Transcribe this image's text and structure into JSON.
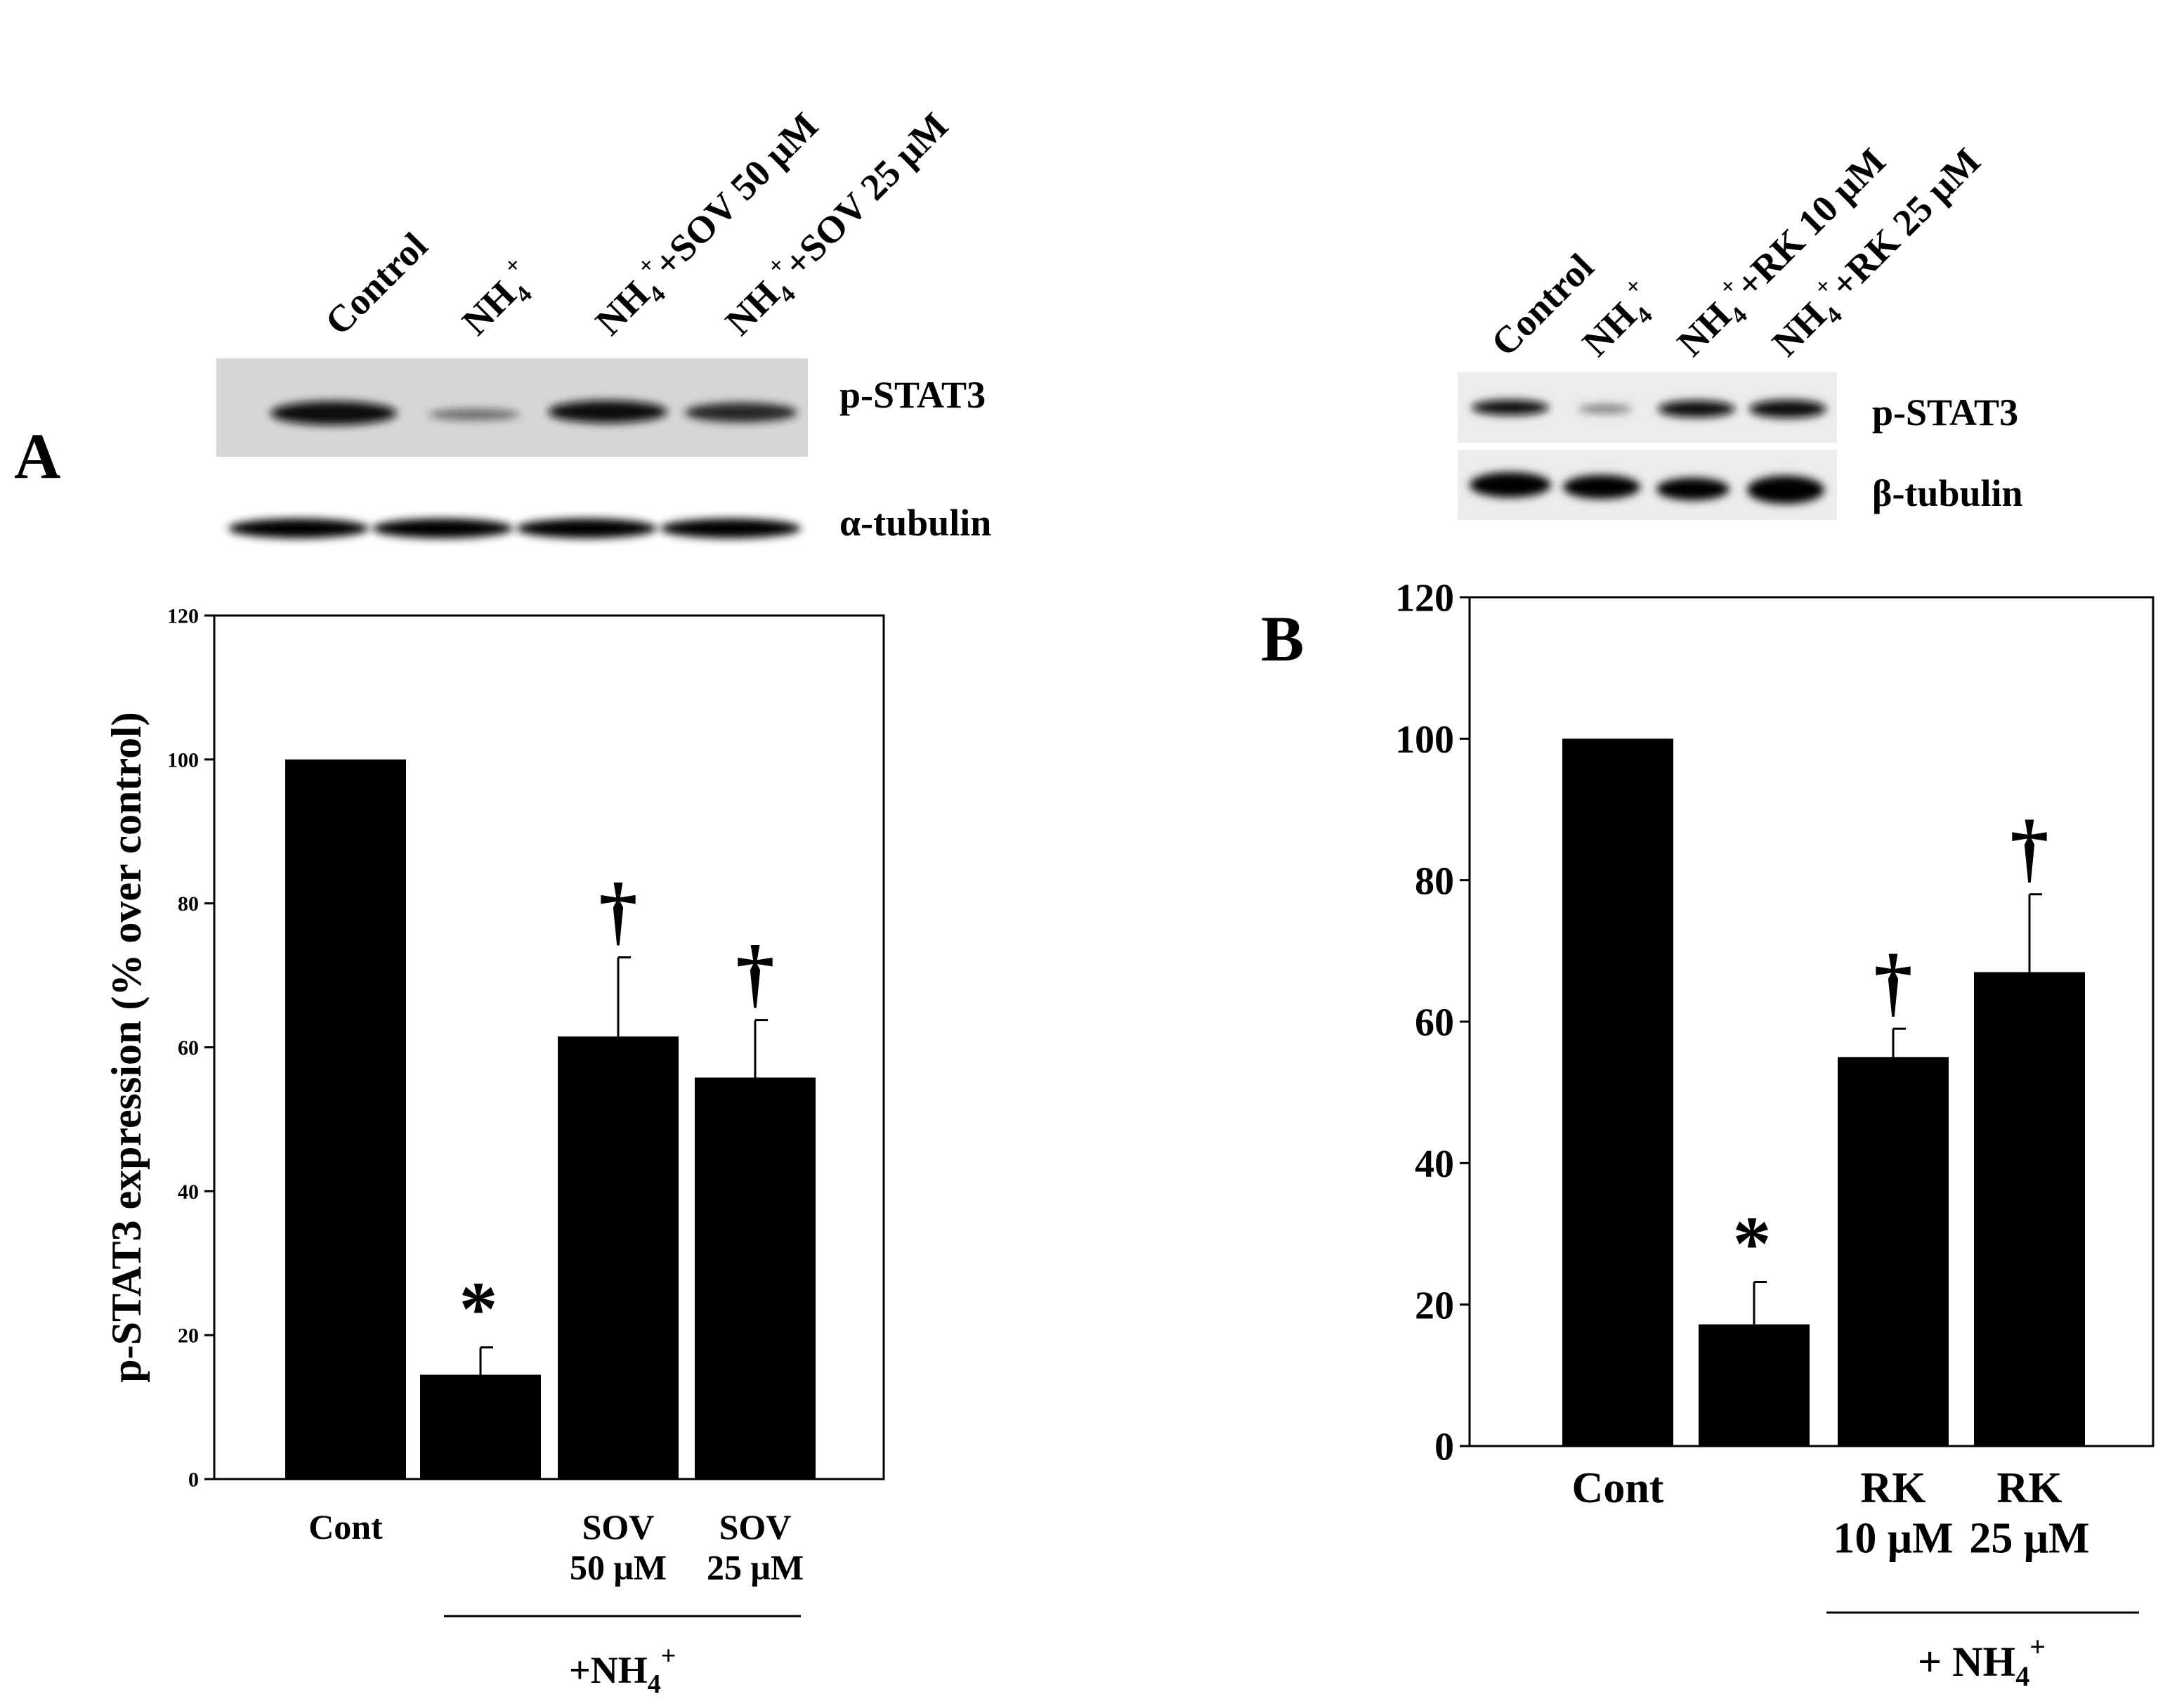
{
  "colors": {
    "bar": "#000000",
    "background": "#ffffff",
    "blot_bg_A": "#d8d8d8",
    "blot_bg_B": "#ededed"
  },
  "panel_A": {
    "letter": "A",
    "lanes": [
      {
        "main": "Control"
      },
      {
        "main": "NH",
        "sub": "4",
        "sup": "+"
      },
      {
        "main": "NH",
        "sub": "4",
        "sup": "+",
        "rest": "+SOV 50 μM"
      },
      {
        "main": "NH",
        "sub": "4",
        "sup": "+",
        "rest": "+SOV 25 μM"
      }
    ],
    "blot_labels": [
      "p-STAT3",
      "α-tubulin"
    ],
    "group_label": {
      "prefix": "+NH",
      "sub": "4",
      "sup": "+"
    }
  },
  "panel_B": {
    "letter": "B",
    "lanes": [
      {
        "main": "Control"
      },
      {
        "main": "NH",
        "sub": "4",
        "sup": "+"
      },
      {
        "main": "NH",
        "sub": "4",
        "sup": "+",
        "rest": "+RK 10 μM"
      },
      {
        "main": "NH",
        "sub": "4",
        "sup": "+",
        "rest": "+RK 25 μM"
      }
    ],
    "blot_labels": [
      "p-STAT3",
      "β-tubulin"
    ],
    "group_label": {
      "prefix": "+ NH",
      "sub": "4",
      "sup": "+"
    }
  },
  "chart_data": [
    {
      "type": "bar",
      "panel": "A",
      "categories": [
        [
          "Cont"
        ],
        [
          ""
        ],
        [
          "SOV",
          "50 μM"
        ],
        [
          "SOV",
          "25 μM"
        ]
      ],
      "values": [
        100,
        14.5,
        61.5,
        55.8
      ],
      "error": [
        0,
        3.8,
        11,
        8
      ],
      "annotations": [
        "",
        "*",
        "†",
        "†"
      ],
      "ylabel": "p-STAT3 expression (% over control)",
      "yticks": [
        0,
        20,
        40,
        60,
        80,
        100,
        120
      ],
      "ylim": [
        0,
        120
      ]
    },
    {
      "type": "bar",
      "panel": "B",
      "categories": [
        [
          "Cont"
        ],
        [
          ""
        ],
        [
          "RK",
          "10 μM"
        ],
        [
          "RK",
          "25 μM"
        ]
      ],
      "values": [
        100,
        17.2,
        55,
        67
      ],
      "error": [
        0,
        6,
        4,
        11
      ],
      "annotations": [
        "",
        "*",
        "†",
        "†"
      ],
      "ylabel": "",
      "yticks": [
        0,
        20,
        40,
        60,
        80,
        100,
        120
      ],
      "ylim": [
        0,
        120
      ]
    }
  ]
}
